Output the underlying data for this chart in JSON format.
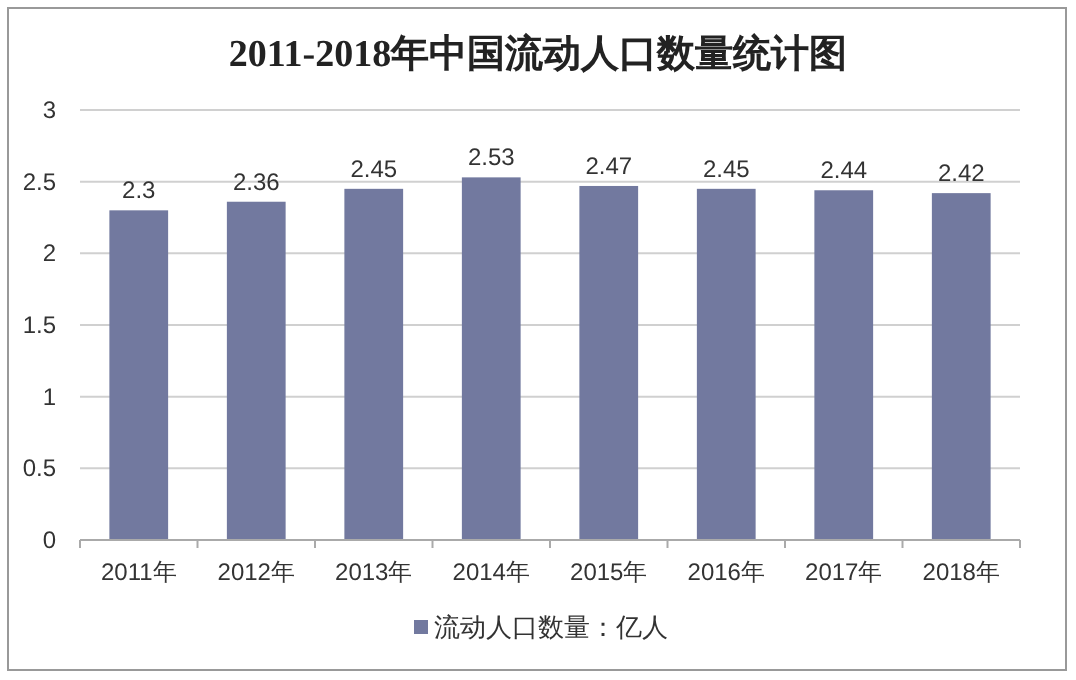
{
  "chart_data": {
    "type": "bar",
    "title": "2011-2018年中国流动人口数量统计图",
    "categories": [
      "2011年",
      "2012年",
      "2013年",
      "2014年",
      "2015年",
      "2016年",
      "2017年",
      "2018年"
    ],
    "series": [
      {
        "name": "流动人口数量：亿人",
        "color": "#72799f",
        "values": [
          2.3,
          2.36,
          2.45,
          2.53,
          2.47,
          2.45,
          2.44,
          2.42
        ]
      }
    ],
    "ylim": [
      0,
      3
    ],
    "yticks": [
      0,
      0.5,
      1,
      1.5,
      2,
      2.5,
      3
    ],
    "grid": "y",
    "legend": "bottom",
    "data_labels": true
  }
}
